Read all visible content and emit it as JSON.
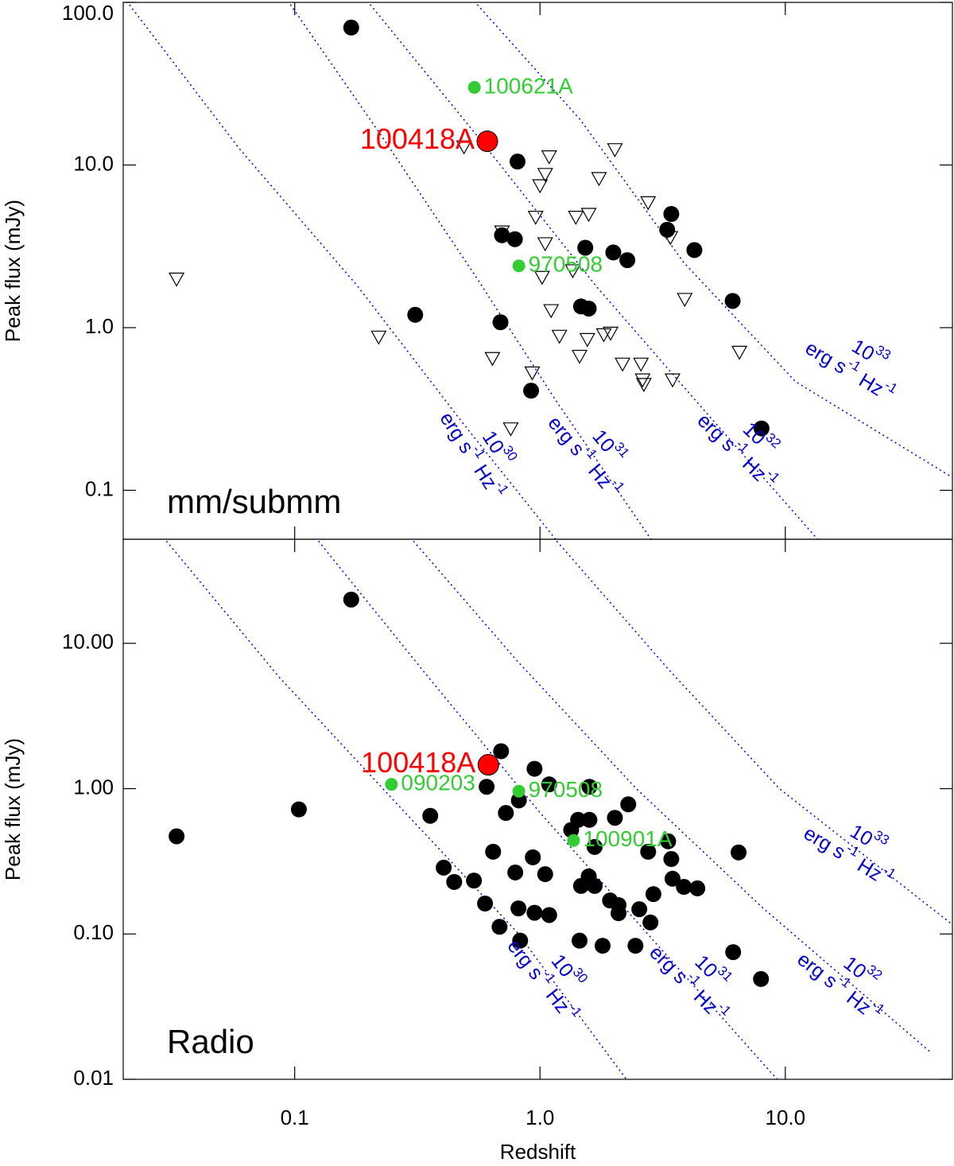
{
  "chart_data": [
    {
      "type": "scatter",
      "panel_label": "mm/submm",
      "ylabel": "Peak flux (mJy)",
      "log_x": true,
      "log_y": true,
      "xlim": [
        0.02,
        48
      ],
      "ylim": [
        0.05,
        100
      ],
      "yticks": [
        {
          "value": 100,
          "label": "100.0"
        },
        {
          "value": 10,
          "label": "10.0"
        },
        {
          "value": 1,
          "label": "1.0"
        },
        0.1
      ],
      "series": [
        {
          "marker": "circle",
          "color": "#000000",
          "x": [
            0.17,
            0.31,
            0.81,
            0.7,
            0.79,
            0.69,
            0.92,
            1.53,
            1.47,
            1.58,
            1.99,
            2.27,
            3.43,
            3.3,
            4.26,
            6.1,
            8.0
          ],
          "values": [
            70,
            1.2,
            10.5,
            3.7,
            3.5,
            1.08,
            0.41,
            3.1,
            1.35,
            1.31,
            2.9,
            2.6,
            5.0,
            4.0,
            3.0,
            1.46,
            0.24
          ]
        },
        {
          "marker": "triangle-open",
          "color": "#000000",
          "x": [
            0.033,
            0.22,
            0.49,
            0.7,
            0.64,
            0.76,
            0.93,
            0.96,
            1.0,
            1.05,
            1.09,
            1.02,
            1.05,
            1.11,
            1.2,
            1.4,
            1.58,
            1.45,
            1.36,
            1.56,
            1.74,
            1.82,
            1.94,
            2.02,
            2.17,
            2.58,
            2.62,
            2.65,
            2.76,
            3.4,
            3.47,
            3.89,
            6.5
          ],
          "values": [
            2.0,
            0.88,
            13,
            3.9,
            0.65,
            0.24,
            0.53,
            4.8,
            7.5,
            8.8,
            11.3,
            2.05,
            3.3,
            1.28,
            0.89,
            4.8,
            5.0,
            0.67,
            2.25,
            0.85,
            8.3,
            0.91,
            0.93,
            12.5,
            0.6,
            0.6,
            0.48,
            0.45,
            5.9,
            3.6,
            0.48,
            1.5,
            0.71
          ]
        }
      ],
      "highlights": [
        {
          "label": "100621A",
          "color": "#33cc33",
          "x": 0.54,
          "y": 30,
          "size": "small",
          "label_side": "right"
        },
        {
          "label": "970508",
          "color": "#33cc33",
          "x": 0.82,
          "y": 2.4,
          "size": "small",
          "label_side": "right"
        },
        {
          "label": "100418A",
          "color": "#ff0000",
          "x": 0.61,
          "y": 14,
          "size": "large",
          "label_side": "left"
        }
      ],
      "curves": [
        {
          "label": [
            "10",
            "30",
            "erg s",
            "-1",
            "Hz",
            "-1"
          ],
          "color": "#0000cc",
          "x": [
            0.0212,
            0.059,
            0.181,
            0.478,
            1.17
          ],
          "y": [
            96.7,
            12.8,
            1.79,
            0.266,
            0.049
          ]
        },
        {
          "label": [
            "10",
            "31",
            "erg s",
            "-1",
            "Hz",
            "-1"
          ],
          "color": "#0000cc",
          "x": [
            0.096,
            0.226,
            0.555,
            1.17,
            2.86
          ],
          "y": [
            97,
            15.1,
            2.0,
            0.35,
            0.049
          ]
        },
        {
          "label": [
            "10",
            "32",
            "erg s",
            "-1",
            "Hz",
            "-1"
          ],
          "color": "#0000cc",
          "x": [
            0.203,
            0.555,
            1.7,
            4.48,
            13.7
          ],
          "y": [
            97,
            15.1,
            1.79,
            0.333,
            0.049
          ]
        },
        {
          "label": [
            "10",
            "33",
            "erg s",
            "-1",
            "Hz",
            "-1"
          ],
          "color": "#0000cc",
          "x": [
            0.555,
            1.46,
            3.86,
            11.0,
            48
          ],
          "y": [
            97,
            19,
            2.51,
            0.466,
            0.12
          ]
        }
      ]
    },
    {
      "type": "scatter",
      "panel_label": "Radio",
      "ylabel": "Peak flux (mJy)",
      "xlabel": "Redshift",
      "log_x": true,
      "log_y": true,
      "xlim": [
        0.02,
        48
      ],
      "ylim": [
        0.01,
        52
      ],
      "xticks": [
        0.1,
        {
          "value": 1,
          "label": "1.0"
        },
        {
          "value": 10,
          "label": "10.0"
        }
      ],
      "yticks": [
        {
          "value": 10,
          "label": "10.00"
        },
        {
          "value": 1,
          "label": "1.00"
        },
        {
          "value": 0.1,
          "label": "0.10"
        },
        0.01
      ],
      "series": [
        {
          "marker": "circle",
          "color": "#000000",
          "x": [
            0.033,
            0.104,
            0.17,
            0.357,
            0.405,
            0.447,
            0.538,
            0.597,
            0.606,
            0.644,
            0.684,
            0.694,
            0.726,
            0.793,
            0.817,
            0.82,
            0.83,
            0.935,
            0.95,
            0.95,
            1.05,
            1.09,
            1.09,
            1.34,
            1.45,
            1.43,
            1.47,
            1.58,
            1.59,
            1.67,
            1.67,
            1.59,
            1.8,
            1.93,
            2.02,
            2.09,
            2.09,
            2.29,
            2.45,
            2.54,
            2.76,
            2.82,
            2.9,
            3.33,
            3.43,
            3.47,
            3.86,
            4.38,
            6.13,
            6.45,
            7.96
          ],
          "values": [
            0.47,
            0.72,
            20,
            0.65,
            0.286,
            0.228,
            0.233,
            0.162,
            1.03,
            0.368,
            0.112,
            1.81,
            0.68,
            0.265,
            0.15,
            0.83,
            0.09,
            0.337,
            1.37,
            0.14,
            0.258,
            1.07,
            0.135,
            0.52,
            0.09,
            0.61,
            0.214,
            0.249,
            0.61,
            0.214,
            0.397,
            1.03,
            0.083,
            0.17,
            0.63,
            0.158,
            0.139,
            0.78,
            0.083,
            0.148,
            0.368,
            0.12,
            0.188,
            0.434,
            0.328,
            0.24,
            0.211,
            0.206,
            0.075,
            0.364,
            0.049
          ]
        }
      ],
      "highlights": [
        {
          "label": "090203",
          "color": "#33cc33",
          "x": 0.248,
          "y": 1.07,
          "size": "small",
          "label_side": "right"
        },
        {
          "label": "970508",
          "color": "#33cc33",
          "x": 0.82,
          "y": 0.96,
          "size": "small",
          "label_side": "right"
        },
        {
          "label": "100901A",
          "color": "#33cc33",
          "x": 1.37,
          "y": 0.44,
          "size": "small",
          "label_side": "right"
        },
        {
          "label": "100418A",
          "color": "#ff0000",
          "x": 0.616,
          "y": 1.46,
          "size": "large",
          "label_side": "left"
        }
      ],
      "curves": [
        {
          "label": [
            "10",
            "30",
            "erg s",
            "-1",
            "Hz",
            "-1"
          ],
          "color": "#0000cc",
          "x": [
            0.03,
            0.086,
            0.263,
            0.805,
            2.29
          ],
          "y": [
            50.5,
            5.9,
            0.776,
            0.103,
            0.0096
          ]
        },
        {
          "label": [
            "10",
            "31",
            "erg s",
            "-1",
            "Hz",
            "-1"
          ],
          "color": "#0000cc",
          "x": [
            0.125,
            0.329,
            1.0,
            3.09,
            9.46
          ],
          "y": [
            50.5,
            6.67,
            0.684,
            0.08,
            0.0096
          ]
        },
        {
          "label": [
            "10",
            "32",
            "erg s",
            "-1",
            "Hz",
            "-1"
          ],
          "color": "#0000cc",
          "x": [
            0.305,
            0.805,
            2.47,
            8.14,
            39
          ],
          "y": [
            50.5,
            7.6,
            1.0,
            0.15,
            0.0154
          ]
        },
        {
          "label": [
            "10",
            "33",
            "erg s",
            "-1",
            "Hz",
            "-1"
          ],
          "color": "#0000cc",
          "x": [
            1.17,
            3.33,
            9.46,
            48
          ],
          "y": [
            50.5,
            6.67,
            1.0,
            0.116
          ]
        }
      ]
    }
  ]
}
